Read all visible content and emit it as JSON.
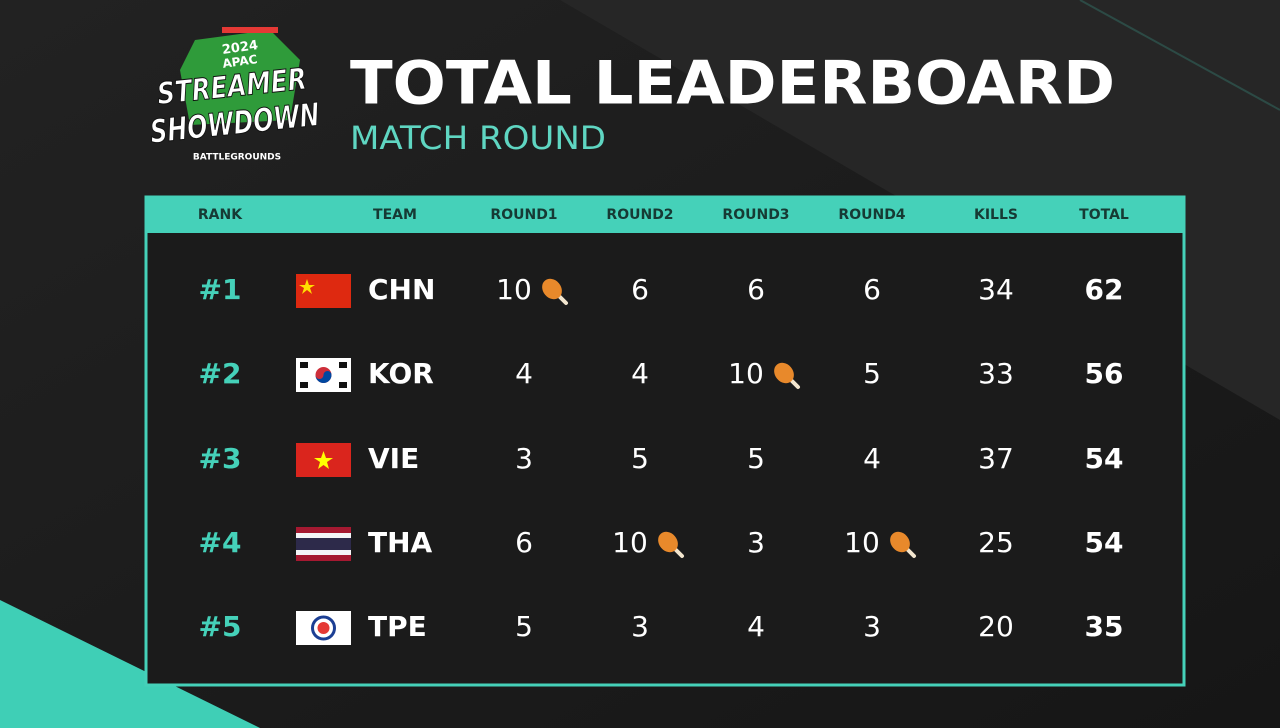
{
  "logo": {
    "year": "2024",
    "region": "APAC",
    "line1": "STREAMER",
    "line2": "SHOWDOWN",
    "game": "BATTLEGROUNDS"
  },
  "header": {
    "title": "TOTAL LEADERBOARD",
    "subtitle": "MATCH ROUND"
  },
  "table": {
    "columns": [
      "RANK",
      "TEAM",
      "ROUND1",
      "ROUND2",
      "ROUND3",
      "ROUND4",
      "KILLS",
      "TOTAL"
    ],
    "rows": [
      [
        "#1",
        "CHN",
        10,
        6,
        6,
        6,
        34,
        62
      ],
      [
        "#2",
        "KOR",
        4,
        4,
        10,
        5,
        33,
        56
      ],
      [
        "#3",
        "VIE",
        3,
        5,
        5,
        4,
        37,
        54
      ],
      [
        "#4",
        "THA",
        6,
        10,
        3,
        10,
        25,
        54
      ],
      [
        "#5",
        "TPE",
        5,
        3,
        4,
        3,
        20,
        35
      ]
    ]
  }
}
